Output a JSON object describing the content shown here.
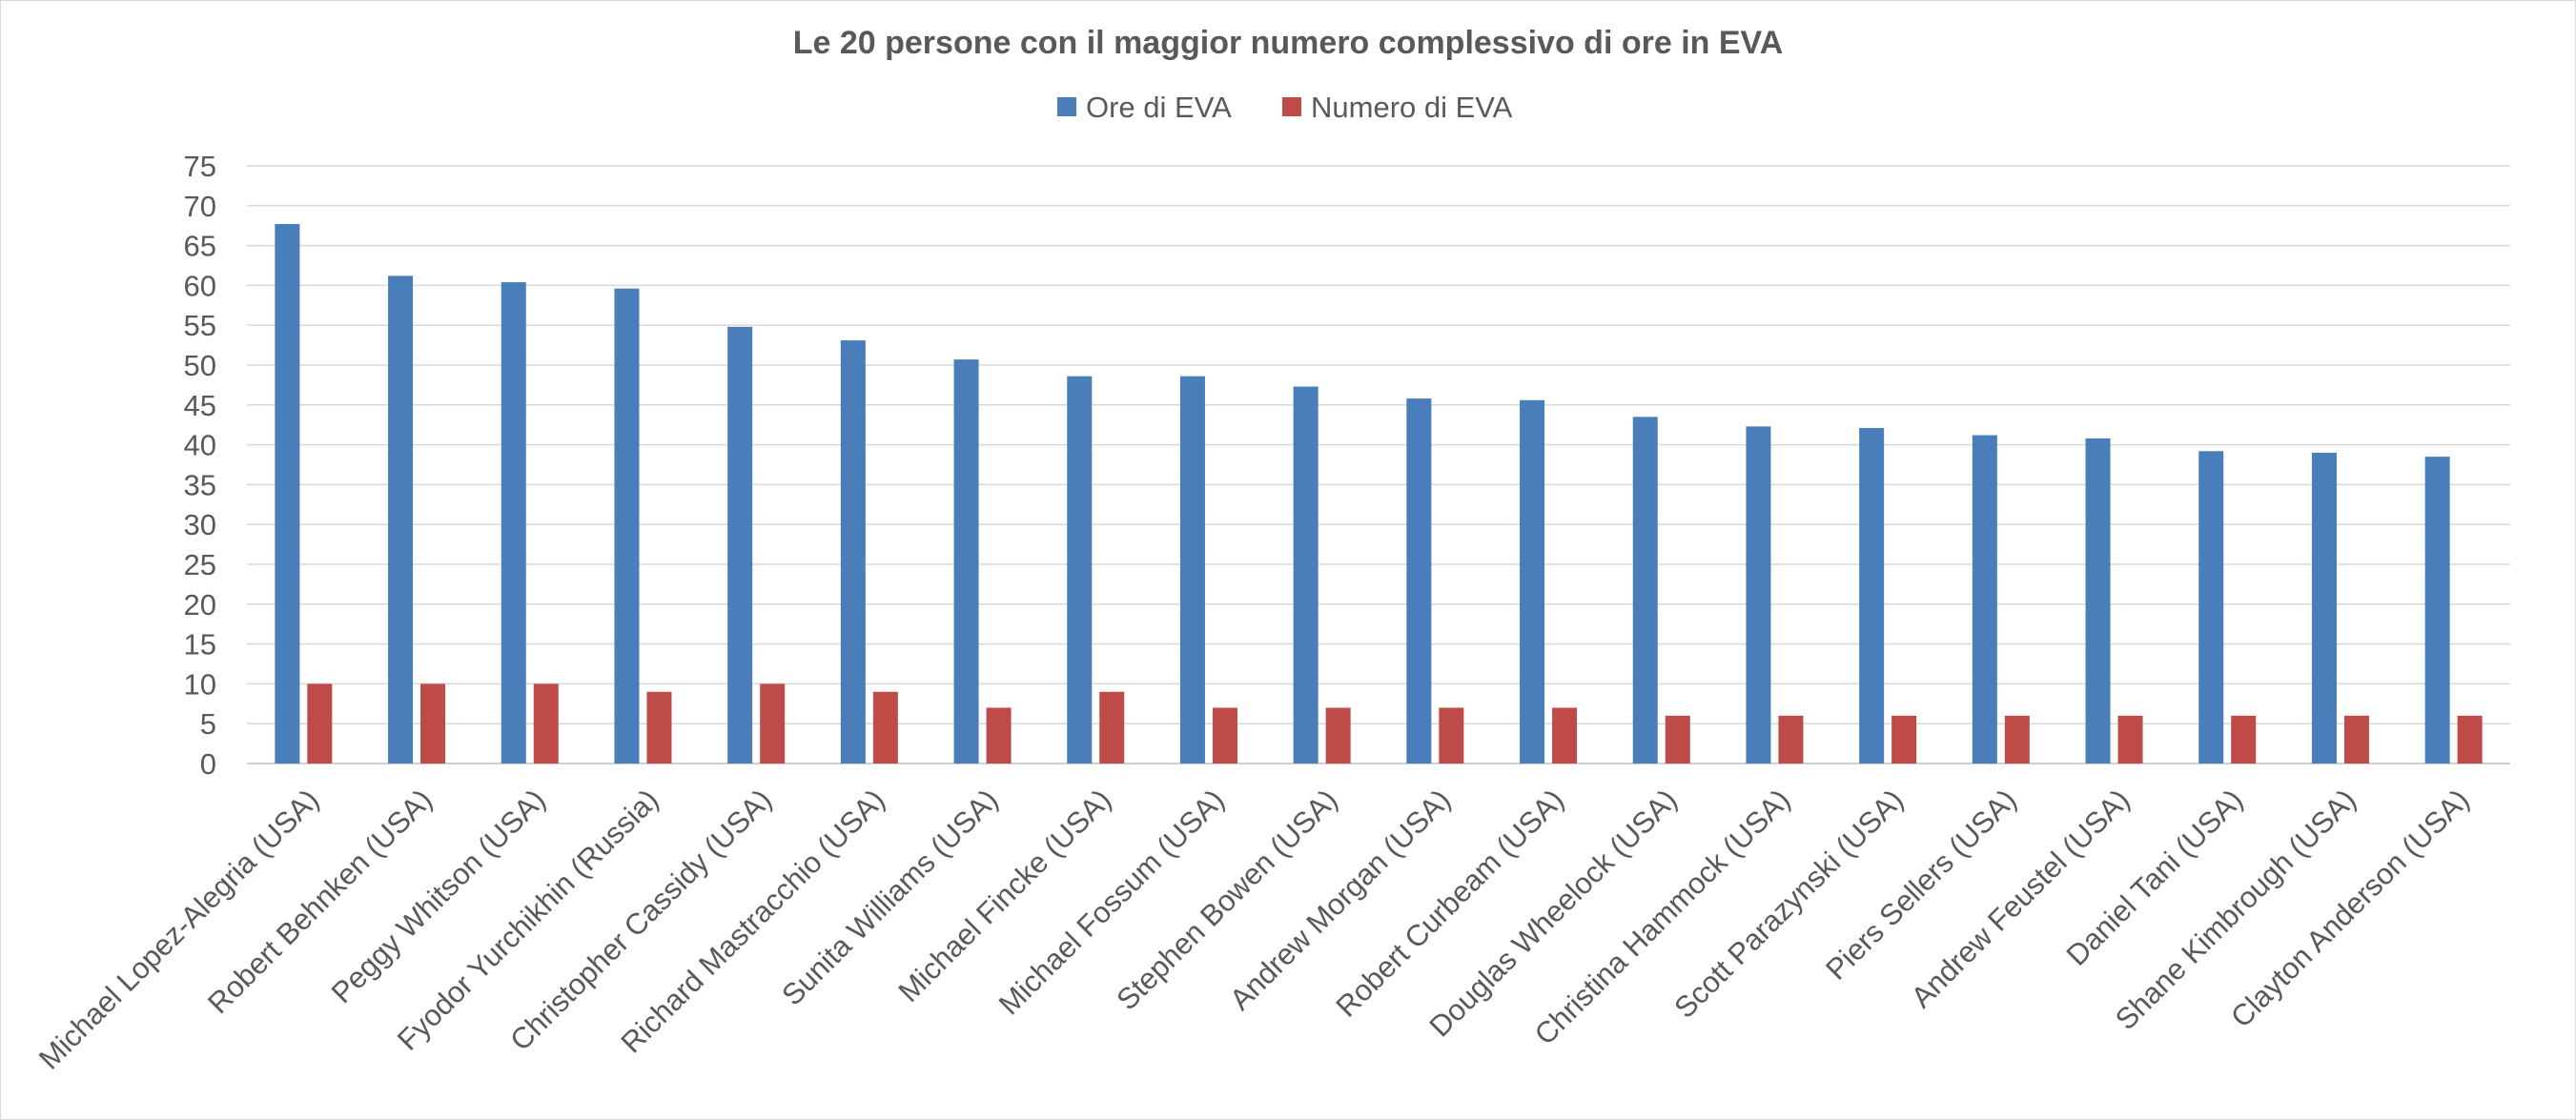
{
  "chart_data": {
    "type": "bar",
    "title": "Le 20 persone con il maggior numero complessivo di ore in EVA",
    "xlabel": "",
    "ylabel": "",
    "ylim": [
      0,
      75
    ],
    "yticks": [
      0,
      5,
      10,
      15,
      20,
      25,
      30,
      35,
      40,
      45,
      50,
      55,
      60,
      65,
      70,
      75
    ],
    "grid": true,
    "legend_position": "top",
    "categories": [
      "Michael Lopez-Alegria (USA)",
      "Robert Behnken (USA)",
      "Peggy Whitson (USA)",
      "Fyodor Yurchikhin (Russia)",
      "Christopher Cassidy (USA)",
      "Richard Mastracchio (USA)",
      "Sunita Williams (USA)",
      "Michael Fincke (USA)",
      "Michael Fossum (USA)",
      "Stephen Bowen (USA)",
      "Andrew Morgan (USA)",
      "Robert Curbeam (USA)",
      "Douglas Wheelock  (USA)",
      "Christina Hammock (USA)",
      "Scott Parazynski (USA)",
      "Piers Sellers (USA)",
      "Andrew Feustel (USA)",
      "Daniel Tani (USA)",
      "Shane Kimbrough  (USA)",
      "Clayton Anderson (USA)"
    ],
    "series": [
      {
        "name": "Ore di EVA",
        "color": "#4a7ebb",
        "values": [
          67.7,
          61.2,
          60.4,
          59.6,
          54.8,
          53.1,
          50.7,
          48.6,
          48.6,
          47.3,
          45.8,
          45.6,
          43.5,
          42.3,
          42.1,
          41.2,
          40.8,
          39.2,
          39.0,
          38.5
        ]
      },
      {
        "name": "Numero di EVA",
        "color": "#be4b48",
        "values": [
          10,
          10,
          10,
          9,
          10,
          9,
          7,
          9,
          7,
          7,
          7,
          7,
          6,
          6,
          6,
          6,
          6,
          6,
          6,
          6
        ]
      }
    ]
  }
}
